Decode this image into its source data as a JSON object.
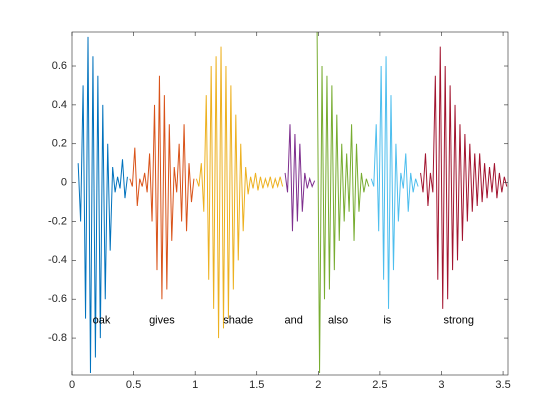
{
  "chart_data": {
    "type": "line",
    "xlim": [
      0,
      3.54
    ],
    "ylim": [
      -0.99,
      0.775
    ],
    "xticks": [
      0,
      0.5,
      1,
      1.5,
      2,
      2.5,
      3,
      3.5
    ],
    "yticks": [
      -0.8,
      -0.6,
      -0.4,
      -0.2,
      0,
      0.2,
      0.4,
      0.6
    ],
    "series": [
      {
        "color": "#0072bd",
        "x": [
          0.05,
          0.07,
          0.09,
          0.11,
          0.13,
          0.15,
          0.17,
          0.19,
          0.21,
          0.23,
          0.25,
          0.27,
          0.29,
          0.31,
          0.33,
          0.35,
          0.37,
          0.39,
          0.41,
          0.43,
          0.45
        ],
        "values": [
          0.1,
          -0.2,
          0.5,
          -0.7,
          0.75,
          -0.98,
          0.65,
          -0.9,
          0.55,
          -0.8,
          0.4,
          -0.6,
          0.2,
          -0.35,
          0.08,
          -0.05,
          0.03,
          -0.03,
          0.12,
          -0.08,
          0.03
        ]
      },
      {
        "color": "#d95319",
        "x": [
          0.47,
          0.49,
          0.51,
          0.53,
          0.55,
          0.57,
          0.59,
          0.61,
          0.63,
          0.65,
          0.67,
          0.69,
          0.71,
          0.73,
          0.75,
          0.77,
          0.79,
          0.81,
          0.83,
          0.85,
          0.87,
          0.89,
          0.91,
          0.93,
          0.95,
          0.97,
          0.99
        ],
        "values": [
          0.02,
          -0.02,
          0.18,
          -0.12,
          0.02,
          -0.02,
          0.05,
          -0.05,
          0.15,
          -0.2,
          0.4,
          -0.45,
          0.55,
          -0.6,
          0.45,
          -0.55,
          0.3,
          -0.3,
          0.08,
          -0.05,
          0.2,
          -0.2,
          0.3,
          -0.25,
          0.1,
          -0.1,
          0.02
        ]
      },
      {
        "color": "#edb120",
        "x": [
          1.01,
          1.03,
          1.05,
          1.07,
          1.09,
          1.11,
          1.13,
          1.15,
          1.17,
          1.19,
          1.21,
          1.23,
          1.25,
          1.27,
          1.29,
          1.31,
          1.33,
          1.35,
          1.37,
          1.39,
          1.41,
          1.43,
          1.45,
          1.47,
          1.49,
          1.51,
          1.53,
          1.55,
          1.57,
          1.59,
          1.61,
          1.63,
          1.65,
          1.67,
          1.69,
          1.71
        ],
        "values": [
          0.02,
          -0.02,
          0.1,
          -0.15,
          0.45,
          -0.5,
          0.6,
          -0.65,
          0.65,
          -0.8,
          0.7,
          -0.75,
          0.6,
          -0.7,
          0.5,
          -0.55,
          0.35,
          -0.4,
          0.2,
          -0.25,
          0.08,
          -0.06,
          0.03,
          -0.03,
          0.05,
          -0.04,
          0.03,
          -0.03,
          0.02,
          -0.02,
          0.03,
          -0.03,
          0.02,
          -0.02,
          0.03,
          -0.02
        ]
      },
      {
        "color": "#7e2f8e",
        "x": [
          1.73,
          1.75,
          1.77,
          1.79,
          1.81,
          1.83,
          1.85,
          1.87,
          1.89,
          1.91,
          1.93,
          1.95,
          1.97
        ],
        "values": [
          0.05,
          -0.05,
          0.3,
          -0.25,
          0.25,
          -0.2,
          0.2,
          -0.15,
          0.05,
          -0.03,
          0.02,
          -0.02,
          0.01
        ]
      },
      {
        "color": "#77ac30",
        "x": [
          1.99,
          2.01,
          2.03,
          2.05,
          2.07,
          2.09,
          2.11,
          2.13,
          2.15,
          2.17,
          2.19,
          2.21,
          2.23,
          2.25,
          2.27,
          2.29,
          2.31,
          2.33,
          2.35,
          2.37,
          2.39,
          2.41
        ],
        "values": [
          0.78,
          -0.98,
          0.6,
          -0.6,
          0.55,
          -0.55,
          0.5,
          -0.45,
          0.35,
          -0.3,
          0.2,
          -0.2,
          0.15,
          -0.15,
          0.3,
          -0.3,
          0.2,
          -0.15,
          0.05,
          -0.05,
          0.02,
          -0.02
        ]
      },
      {
        "color": "#4dbeee",
        "x": [
          2.43,
          2.45,
          2.47,
          2.49,
          2.51,
          2.53,
          2.55,
          2.57,
          2.59,
          2.61,
          2.63,
          2.65,
          2.67,
          2.69,
          2.71,
          2.73,
          2.75,
          2.77,
          2.79,
          2.81
        ],
        "values": [
          0.02,
          -0.02,
          0.3,
          -0.25,
          0.6,
          -0.5,
          0.65,
          -0.65,
          0.45,
          -0.45,
          0.2,
          -0.2,
          0.05,
          -0.03,
          0.15,
          -0.15,
          0.05,
          -0.05,
          0.02,
          -0.02
        ]
      },
      {
        "color": "#a2142f",
        "x": [
          2.83,
          2.85,
          2.87,
          2.89,
          2.91,
          2.93,
          2.95,
          2.97,
          2.99,
          3.01,
          3.03,
          3.05,
          3.07,
          3.09,
          3.11,
          3.13,
          3.15,
          3.17,
          3.19,
          3.21,
          3.23,
          3.25,
          3.27,
          3.29,
          3.31,
          3.33,
          3.35,
          3.37,
          3.39,
          3.41,
          3.43,
          3.45,
          3.47,
          3.49,
          3.51,
          3.53
        ],
        "values": [
          0.05,
          -0.05,
          0.15,
          -0.12,
          0.05,
          -0.05,
          0.55,
          -0.5,
          0.7,
          -0.65,
          0.6,
          -0.6,
          0.5,
          -0.45,
          0.4,
          -0.4,
          0.3,
          -0.3,
          0.25,
          -0.2,
          0.2,
          -0.15,
          0.15,
          -0.12,
          0.15,
          -0.1,
          0.1,
          -0.08,
          0.08,
          -0.05,
          0.1,
          -0.08,
          0.05,
          -0.05,
          0.03,
          -0.02
        ]
      }
    ],
    "annotations": [
      {
        "text": "oak",
        "x": 0.24,
        "y": -0.71
      },
      {
        "text": "gives",
        "x": 0.73,
        "y": -0.71
      },
      {
        "text": "shade",
        "x": 1.35,
        "y": -0.71
      },
      {
        "text": "and",
        "x": 1.8,
        "y": -0.71
      },
      {
        "text": "also",
        "x": 2.16,
        "y": -0.71
      },
      {
        "text": "is",
        "x": 2.56,
        "y": -0.71
      },
      {
        "text": "strong",
        "x": 3.14,
        "y": -0.71
      }
    ]
  }
}
